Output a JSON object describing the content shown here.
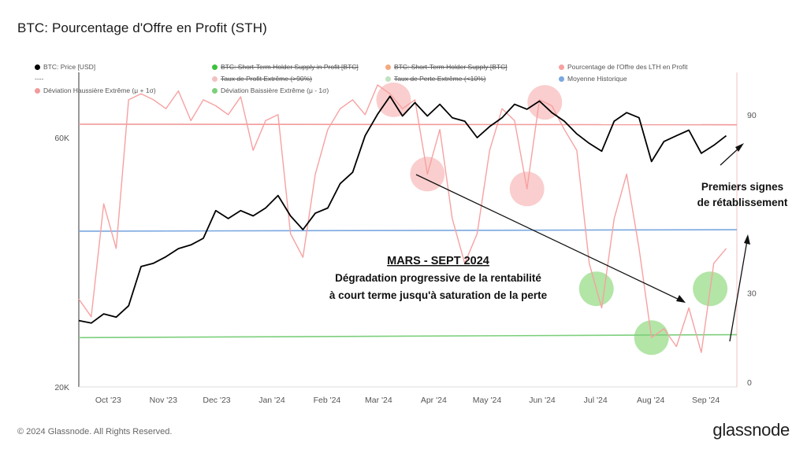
{
  "title": "BTC: Pourcentage d'Offre en Profit (STH)",
  "footer": "© 2024 Glassnode. All Rights Reserved.",
  "brand": "glassnode",
  "legend": [
    {
      "label": "BTC: Price [USD]",
      "color": "#000000",
      "marker": "dot",
      "struck": false
    },
    {
      "label": "BTC: Short-Term Holder Supply in Profit [BTC]",
      "color": "#3cc13b",
      "marker": "dot",
      "struck": true
    },
    {
      "label": "BTC: Short-Term Holder Supply [BTC]",
      "color": "#f5a97f",
      "marker": "dot",
      "struck": true
    },
    {
      "label": "Pourcentage de l'Offre des LTH en Profit",
      "color": "#f7a1a1",
      "marker": "dot",
      "struck": false
    },
    {
      "label": "----",
      "color": "#888888",
      "marker": "none",
      "struck": false
    },
    {
      "label": "Taux de Profit Extrême (>90%)",
      "color": "#f3c0c0",
      "marker": "dot",
      "struck": true
    },
    {
      "label": "Taux de Perte Extrême (<10%)",
      "color": "#bfe3bf",
      "marker": "dot",
      "struck": true
    },
    {
      "label": "Moyenne Historique",
      "color": "#7aa7e0",
      "marker": "dot",
      "struck": false
    },
    {
      "label": "Déviation Haussière Extrême (μ + 1σ)",
      "color": "#f29a9a",
      "marker": "dot",
      "struck": false
    },
    {
      "label": "Déviation Baissière Extrême (μ - 1σ)",
      "color": "#7ccf7c",
      "marker": "dot",
      "struck": false
    }
  ],
  "annotations": {
    "main_title": "MARS - SEPT 2024",
    "main_line1": "Dégradation progressive de la rentabilité",
    "main_line2": "à court terme jusqu'à saturation de la perte",
    "side_line1": "Premiers signes",
    "side_line2": "de rétablissement"
  },
  "chart_data": {
    "type": "line",
    "x_ticks": [
      "Oct '23",
      "Nov '23",
      "Dec '23",
      "Jan '24",
      "Feb '24",
      "Mar '24",
      "Apr '24",
      "May '24",
      "Jun '24",
      "Jul '24",
      "Aug '24",
      "Sep '24"
    ],
    "y_left": {
      "scale": "log",
      "ticks": [
        "60K",
        "20K"
      ],
      "ylim": [
        20000,
        80000
      ]
    },
    "y_right": {
      "ticks": [
        "90",
        "30",
        "0"
      ],
      "ylim": [
        0,
        100
      ]
    },
    "series": [
      {
        "name": "BTC: Price [USD]",
        "color": "#000000",
        "axis": "left",
        "x": [
          "2023-09-18",
          "2023-09-25",
          "2023-10-02",
          "2023-10-09",
          "2023-10-16",
          "2023-10-23",
          "2023-10-30",
          "2023-11-06",
          "2023-11-13",
          "2023-11-20",
          "2023-11-27",
          "2023-12-04",
          "2023-12-11",
          "2023-12-18",
          "2023-12-25",
          "2024-01-01",
          "2024-01-08",
          "2024-01-15",
          "2024-01-22",
          "2024-01-29",
          "2024-02-05",
          "2024-02-12",
          "2024-02-19",
          "2024-02-26",
          "2024-03-04",
          "2024-03-11",
          "2024-03-18",
          "2024-03-25",
          "2024-04-01",
          "2024-04-08",
          "2024-04-15",
          "2024-04-22",
          "2024-04-29",
          "2024-05-06",
          "2024-05-13",
          "2024-05-20",
          "2024-05-27",
          "2024-06-03",
          "2024-06-10",
          "2024-06-17",
          "2024-06-24",
          "2024-07-01",
          "2024-07-08",
          "2024-07-15",
          "2024-07-22",
          "2024-07-29",
          "2024-08-05",
          "2024-08-12",
          "2024-08-19",
          "2024-08-26",
          "2024-09-02",
          "2024-09-09",
          "2024-09-16"
        ],
        "values": [
          26800,
          26500,
          27600,
          27200,
          28600,
          34000,
          34500,
          35500,
          36800,
          37400,
          38500,
          43500,
          42000,
          43500,
          42500,
          44000,
          46500,
          42500,
          40000,
          43000,
          44000,
          49000,
          51500,
          60500,
          66500,
          72000,
          66000,
          70000,
          66000,
          69500,
          65500,
          64500,
          60000,
          63000,
          65500,
          69500,
          68000,
          70500,
          67000,
          64500,
          61000,
          58500,
          56500,
          64500,
          67000,
          65500,
          54000,
          59000,
          60500,
          62000,
          56000,
          58000,
          60500
        ]
      },
      {
        "name": "Pourcentage de l'Offre des LTH en Profit",
        "color": "#f7a1a1",
        "axis": "right",
        "x": [
          "2023-09-18",
          "2023-09-25",
          "2023-10-02",
          "2023-10-09",
          "2023-10-16",
          "2023-10-23",
          "2023-10-30",
          "2023-11-06",
          "2023-11-13",
          "2023-11-20",
          "2023-11-27",
          "2023-12-04",
          "2023-12-11",
          "2023-12-18",
          "2023-12-25",
          "2024-01-01",
          "2024-01-08",
          "2024-01-15",
          "2024-01-22",
          "2024-01-29",
          "2024-02-05",
          "2024-02-12",
          "2024-02-19",
          "2024-02-26",
          "2024-03-04",
          "2024-03-11",
          "2024-03-18",
          "2024-03-25",
          "2024-04-01",
          "2024-04-08",
          "2024-04-15",
          "2024-04-22",
          "2024-04-29",
          "2024-05-06",
          "2024-05-13",
          "2024-05-20",
          "2024-05-27",
          "2024-06-03",
          "2024-06-10",
          "2024-06-17",
          "2024-06-24",
          "2024-07-01",
          "2024-07-08",
          "2024-07-15",
          "2024-07-22",
          "2024-07-29",
          "2024-08-05",
          "2024-08-12",
          "2024-08-19",
          "2024-08-26",
          "2024-09-02",
          "2024-09-09",
          "2024-09-16"
        ],
        "values": [
          28,
          22,
          60,
          45,
          95,
          97,
          95,
          92,
          98,
          88,
          95,
          93,
          90,
          96,
          78,
          88,
          90,
          50,
          42,
          70,
          85,
          92,
          95,
          90,
          100,
          97,
          92,
          95,
          70,
          85,
          55,
          40,
          50,
          78,
          92,
          88,
          65,
          95,
          93,
          85,
          78,
          40,
          25,
          55,
          70,
          45,
          15,
          18,
          12,
          25,
          10,
          40,
          45
        ]
      },
      {
        "name": "Moyenne Historique",
        "color": "#7aa7e0",
        "axis": "right",
        "x": [
          "2023-09-18",
          "2024-09-22"
        ],
        "values": [
          50.8,
          51.3
        ]
      },
      {
        "name": "Déviation Haussière Extrême (μ + 1σ)",
        "color": "#f29a9a",
        "axis": "right",
        "x": [
          "2023-09-18",
          "2024-09-22"
        ],
        "values": [
          86.8,
          86.6
        ]
      },
      {
        "name": "Déviation Baissière Extrême (μ - 1σ)",
        "color": "#7ccf7c",
        "axis": "right",
        "x": [
          "2023-09-18",
          "2024-09-22"
        ],
        "values": [
          15.0,
          16.0
        ]
      }
    ],
    "highlights_profit": [
      "2024-03-13",
      "2024-04-01",
      "2024-05-27",
      "2024-06-06"
    ],
    "highlights_loss": [
      "2024-07-05",
      "2024-08-05",
      "2024-09-07"
    ]
  }
}
